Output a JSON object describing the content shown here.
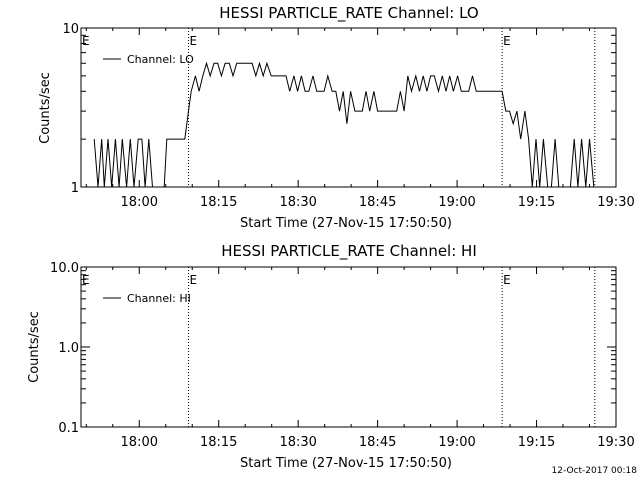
{
  "timestamp": "12-Oct-2017 00:18",
  "chart_data": [
    {
      "type": "line",
      "title": "HESSI PARTICLE_RATE Channel: LO",
      "xlabel": "Start Time (27-Nov-15 17:50:50)",
      "ylabel": "Counts/sec",
      "yscale": "log",
      "ylim": [
        1,
        10
      ],
      "y_tick_labels": [
        "1",
        "10"
      ],
      "x_unit": "minutes since 17:50",
      "xlim": [
        -1,
        100
      ],
      "x_ticks": [
        10,
        25,
        40,
        55,
        70,
        85,
        100
      ],
      "x_tick_labels": [
        "18:00",
        "18:15",
        "18:30",
        "18:45",
        "19:00",
        "19:15",
        "19:30"
      ],
      "event_lines": [
        {
          "x": 19.3,
          "label": "E"
        },
        {
          "x": 78.5,
          "label": "E"
        },
        {
          "x": 96,
          "label": ""
        }
      ],
      "left_event_label": "E",
      "series": [
        {
          "name": "Channel: LO",
          "x": [
            1.5,
            2.2,
            2.9,
            3.4,
            4.1,
            4.8,
            5.5,
            6.2,
            6.8,
            7.6,
            8.3,
            9.0,
            9.8,
            10.5,
            11.1,
            11.8,
            12.5,
            13.3,
            14.0,
            14.7,
            15.2,
            16.0,
            16.6,
            17.3,
            18.0,
            18.6,
            19.3,
            19.8,
            20.6,
            21.3,
            22.0,
            22.7,
            23.4,
            24.1,
            24.8,
            25.5,
            26.2,
            27.0,
            27.7,
            28.4,
            29.1,
            29.8,
            30.5,
            31.3,
            32.0,
            32.7,
            33.4,
            34.1,
            34.9,
            35.6,
            36.3,
            37.0,
            37.7,
            38.4,
            39.2,
            39.9,
            40.6,
            41.3,
            42.0,
            42.8,
            43.5,
            44.2,
            44.9,
            45.6,
            46.4,
            47.1,
            47.8,
            48.5,
            49.2,
            49.9,
            50.7,
            51.4,
            52.1,
            52.8,
            53.5,
            54.3,
            55.0,
            55.7,
            56.4,
            57.1,
            57.8,
            58.6,
            59.3,
            60.0,
            60.7,
            61.4,
            62.2,
            62.9,
            63.6,
            64.3,
            65.0,
            65.7,
            66.5,
            67.2,
            67.9,
            68.6,
            69.3,
            70.1,
            70.8,
            71.5,
            72.2,
            72.9,
            73.6,
            74.4,
            75.1,
            75.8,
            76.5,
            77.2,
            77.9,
            78.5,
            79.2,
            79.9,
            80.6,
            81.3,
            82.0,
            82.8,
            83.5,
            84.2,
            84.9,
            85.6,
            86.3,
            87.1,
            87.8,
            88.5,
            89.2,
            89.9,
            90.7,
            91.4,
            92.1,
            92.8,
            93.5,
            94.3,
            95.0,
            95.8
          ],
          "y": [
            2,
            1,
            2,
            1,
            2,
            1,
            2,
            1,
            2,
            1,
            2,
            1,
            2,
            2,
            1,
            2,
            1,
            1,
            1,
            1,
            2,
            2,
            2,
            2,
            2,
            2,
            3,
            4,
            5,
            4,
            5,
            6,
            5,
            6,
            6,
            5,
            6,
            6,
            5,
            6,
            6,
            6,
            6,
            6,
            5,
            6,
            5,
            6,
            5,
            5,
            5,
            5,
            5,
            4,
            5,
            4,
            5,
            4,
            4,
            5,
            4,
            4,
            4,
            5,
            4,
            4,
            3,
            4,
            2.5,
            4,
            3,
            3,
            3,
            4,
            3,
            4,
            3,
            3,
            3,
            3,
            3,
            3,
            4,
            3,
            5,
            4,
            5,
            4,
            5,
            4,
            5,
            5,
            4,
            5,
            4,
            5,
            4,
            5,
            4,
            4,
            4,
            5,
            4,
            4,
            4,
            4,
            4,
            4,
            4,
            4,
            3,
            3,
            2.5,
            3,
            2,
            3,
            2,
            1,
            2,
            1,
            2,
            1,
            1,
            2,
            1,
            1,
            1,
            1,
            2,
            1,
            2,
            1,
            2,
            1
          ],
          "plot_min": 1
        }
      ]
    },
    {
      "type": "line",
      "title": "HESSI PARTICLE_RATE Channel: HI",
      "xlabel": "Start Time (27-Nov-15 17:50:50)",
      "ylabel": "Counts/sec",
      "yscale": "log",
      "ylim": [
        0.1,
        10
      ],
      "y_tick_labels": [
        "0.1",
        "1.0",
        "10.0"
      ],
      "x_unit": "minutes since 17:50",
      "xlim": [
        -1,
        100
      ],
      "x_ticks": [
        10,
        25,
        40,
        55,
        70,
        85,
        100
      ],
      "x_tick_labels": [
        "18:00",
        "18:15",
        "18:30",
        "18:45",
        "19:00",
        "19:15",
        "19:30"
      ],
      "event_lines": [
        {
          "x": 19.3,
          "label": "E"
        },
        {
          "x": 78.5,
          "label": "E"
        },
        {
          "x": 96,
          "label": ""
        }
      ],
      "left_event_label": "E",
      "series": [
        {
          "name": "Channel: HI",
          "x": [],
          "y": []
        }
      ]
    }
  ]
}
